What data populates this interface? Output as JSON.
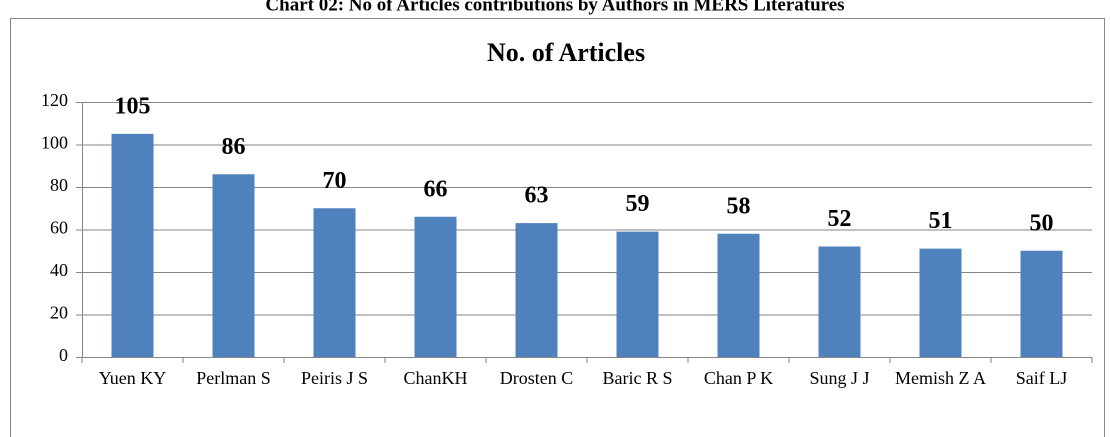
{
  "caption": "Chart 02: No of Articles contributions by Authors in MERS Literatures",
  "chart_data": {
    "type": "bar",
    "title": "No. of Articles",
    "categories": [
      "Yuen KY",
      "Perlman S",
      "Peiris J S",
      "ChanKH",
      "Drosten C",
      "Baric R S",
      "Chan P K",
      "Sung J J",
      "Memish Z A",
      "Saif LJ"
    ],
    "values": [
      105,
      86,
      70,
      66,
      63,
      59,
      58,
      52,
      51,
      50
    ],
    "color": "#4f81bd",
    "ylim": [
      0,
      120
    ],
    "yticks": [
      0,
      20,
      40,
      60,
      80,
      100,
      120
    ],
    "grid": true,
    "data_labels": true
  }
}
